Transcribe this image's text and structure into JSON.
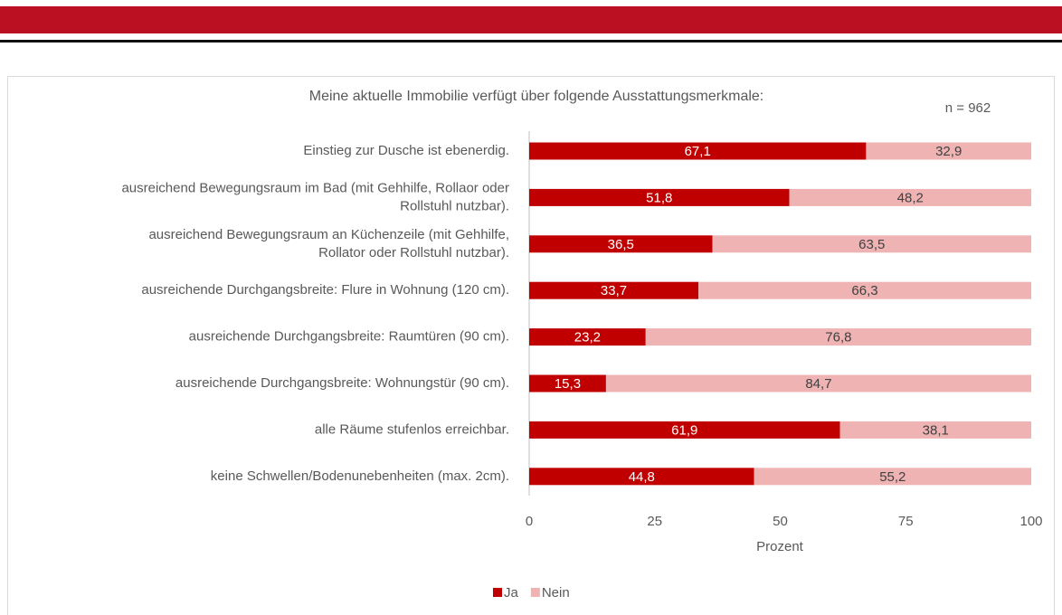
{
  "chart_data": {
    "type": "stacked_barh",
    "title": "Meine aktuelle Immobilie verfügt über folgende Ausstattungsmerkmale:",
    "annotation": "n = 962",
    "xlabel": "Prozent",
    "categories": [
      [
        "Einstieg zur Dusche ist ebenerdig."
      ],
      [
        "ausreichend Bewegungsraum im Bad (mit Gehhilfe, Rollaor oder",
        "Rollstuhl nutzbar)."
      ],
      [
        "ausreichend Bewegungsraum an Küchenzeile (mit Gehhilfe,",
        "Rollator oder Rollstuhl nutzbar)."
      ],
      [
        "ausreichende Durchgangsbreite: Flure in Wohnung (120 cm)."
      ],
      [
        "ausreichende Durchgangsbreite: Raumtüren (90 cm)."
      ],
      [
        "ausreichende Durchgangsbreite: Wohnungstür (90 cm)."
      ],
      [
        "alle Räume stufenlos erreichbar."
      ],
      [
        "keine Schwellen/Bodenunebenheiten (max. 2cm)."
      ]
    ],
    "series": [
      {
        "name": "Ja",
        "color": "#c00000",
        "values": [
          67.1,
          51.8,
          36.5,
          33.7,
          23.2,
          15.3,
          61.9,
          44.8
        ],
        "value_labels": [
          "67,1",
          "51,8",
          "36,5",
          "33,7",
          "23,2",
          "15,3",
          "61,9",
          "44,8"
        ]
      },
      {
        "name": "Nein",
        "color": "#efb3b3",
        "values": [
          32.9,
          48.2,
          63.5,
          66.3,
          76.8,
          84.7,
          38.1,
          55.2
        ],
        "value_labels": [
          "32,9",
          "48,2",
          "63,5",
          "66,3",
          "76,8",
          "84,7",
          "38,1",
          "55,2"
        ]
      }
    ],
    "xlim": [
      0,
      100
    ],
    "xticks": [
      0,
      25,
      50,
      75,
      100
    ],
    "legend": "bottom"
  }
}
